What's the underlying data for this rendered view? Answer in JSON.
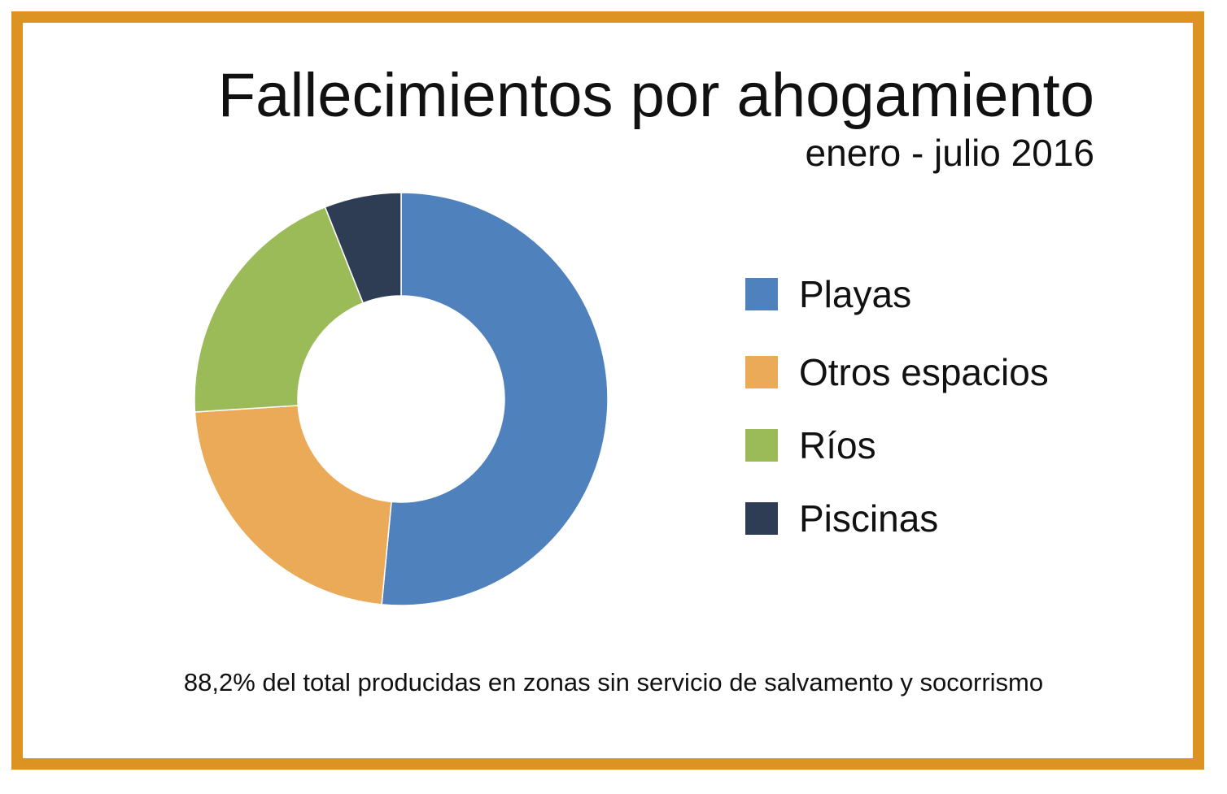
{
  "chart_data": {
    "type": "pie",
    "variant": "donut",
    "title": "Fallecimientos por ahogamiento",
    "subtitle": "enero - julio 2016",
    "categories": [
      "Playas",
      "Otros espacios",
      "Ríos",
      "Piscinas"
    ],
    "values": [
      51.5,
      22.5,
      20.0,
      6.0
    ],
    "colors": [
      "#4f81bd",
      "#ebaa57",
      "#9bbb59",
      "#2e3d53"
    ],
    "legend_position": "right",
    "note": "88,2% del total producidas en zonas sin servicio de salvamento y socorrismo"
  }
}
